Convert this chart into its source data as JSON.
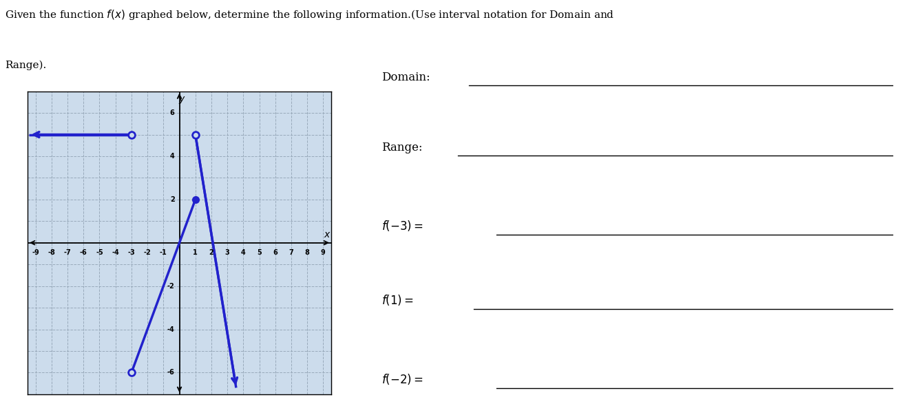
{
  "graph_xlim": [
    -9.5,
    9.5
  ],
  "graph_ylim": [
    -7,
    7
  ],
  "xticks": [
    -9,
    -8,
    -7,
    -6,
    -5,
    -4,
    -3,
    -2,
    -1,
    1,
    2,
    3,
    4,
    5,
    6,
    7,
    8,
    9
  ],
  "yticks": [
    -6,
    -4,
    -2,
    2,
    4,
    6
  ],
  "line_color": "#2222CC",
  "line_width": 2.5,
  "bg_color": "#ccdcec",
  "grid_color": "#99aabb",
  "open_circle_size": 7,
  "filled_circle_size": 7,
  "title_line1": "Given the function $f(x)$ graphed below, determine the following information.(Use interval notation for Domain and",
  "title_line2": "Range).",
  "domain_label": "Domain:",
  "range_label": "Range:",
  "f_neg3_label": "$f(-3) =$",
  "f1_label": "$f(1) =$",
  "f_neg2_label": "$f(-2) =$"
}
